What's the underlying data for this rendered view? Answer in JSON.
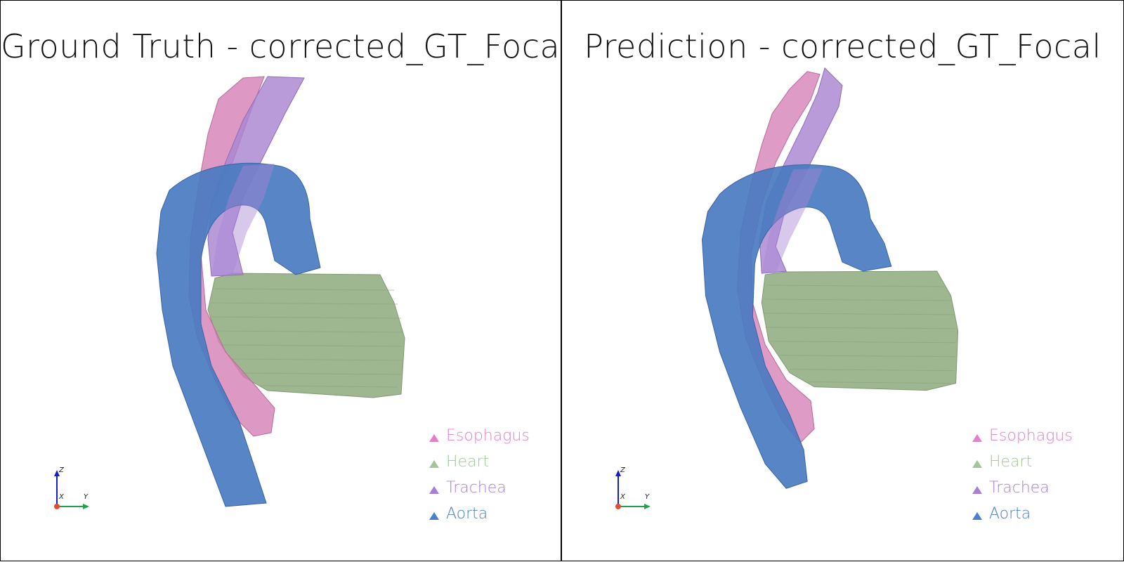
{
  "viewports": [
    {
      "id": "left",
      "title": "Ground Truth - corrected_GT_Focal"
    },
    {
      "id": "right",
      "title": "Prediction - corrected_GT_Focal"
    }
  ],
  "legend": [
    {
      "label": "Esophagus",
      "color": "#e37fc4"
    },
    {
      "label": "Heart",
      "color": "#a6c49a"
    },
    {
      "label": "Trachea",
      "color": "#a77fd9"
    },
    {
      "label": "Aorta",
      "color": "#4b80d1"
    }
  ],
  "axes": {
    "x": "X",
    "y": "Y",
    "z": "Z"
  },
  "colors": {
    "aorta": "#4a7bc0",
    "heart": "#9fb791",
    "esophagus": "#d57fb5",
    "trachea": "#a985d2",
    "axis_z": "#1020d0",
    "axis_y": "#20a050",
    "origin": "#e05030"
  }
}
